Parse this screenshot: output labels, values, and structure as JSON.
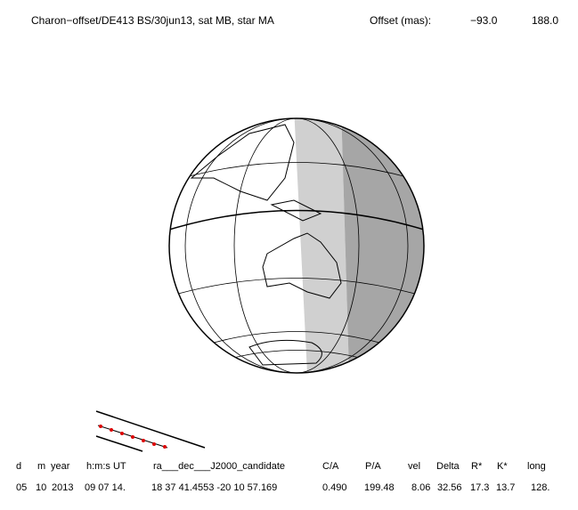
{
  "header": {
    "title": "Charon−offset/DE413 BS/30jun13, sat MB, star MA",
    "offset_label": "Offset (mas):",
    "offset_values": [
      "−93.0",
      "188.0"
    ]
  },
  "table": {
    "header": [
      "d",
      "m",
      "year",
      "h:m:s UT",
      "ra___dec___J2000_candidate",
      "C/A",
      "P/A",
      "vel",
      "Delta",
      "R*",
      "K*",
      "long"
    ],
    "rows": [
      [
        "05",
        "10",
        "2013",
        "09 07 14.",
        "18 37 41.4553 -20 10 57.169",
        "0.490",
        "199.48",
        "8.06",
        "32.56",
        "17.3",
        "13.7",
        "128."
      ]
    ]
  }
}
